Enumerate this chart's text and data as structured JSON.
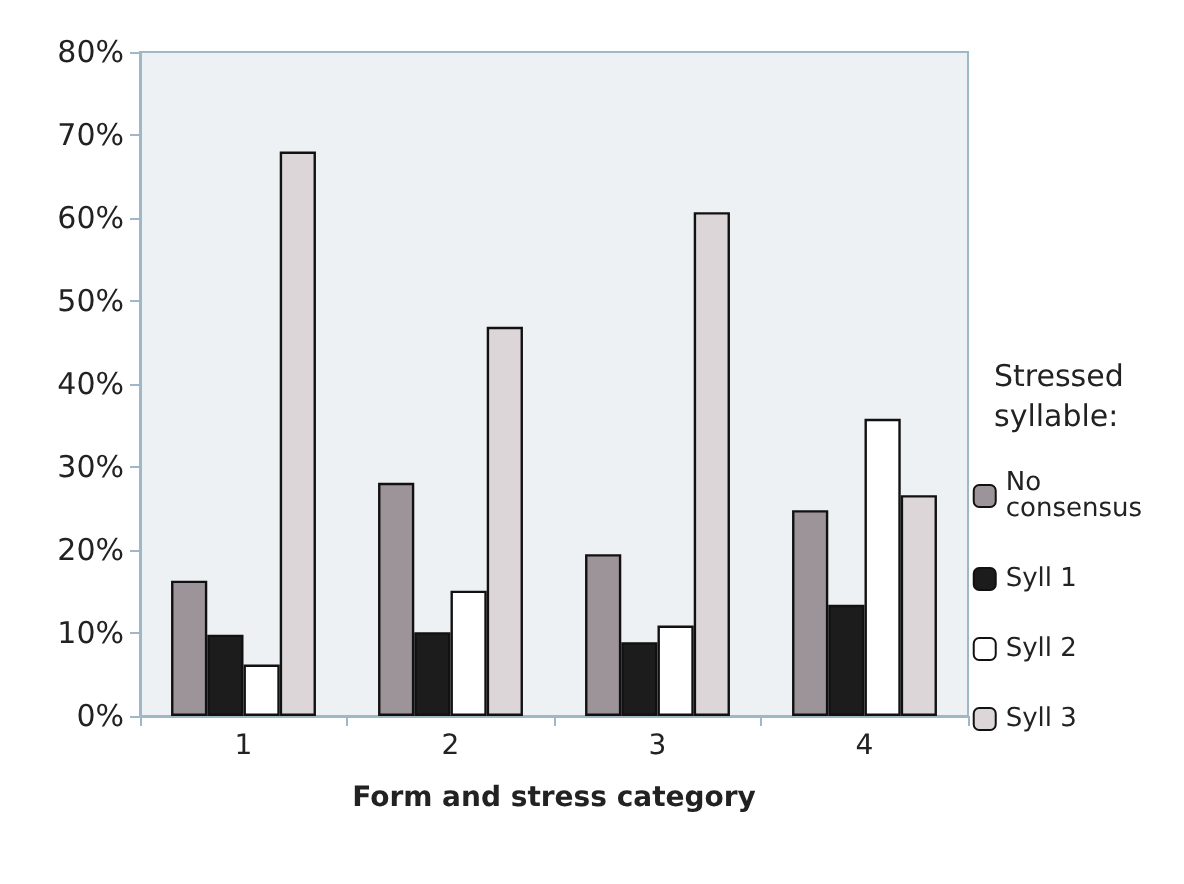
{
  "chart_data": {
    "type": "bar",
    "xlabel": "Form and stress category",
    "legend_title": "Stressed syllable:",
    "categories": [
      "1",
      "2",
      "3",
      "4"
    ],
    "series": [
      {
        "name": "No consensus",
        "color": "#9c9498",
        "values": [
          16.3,
          28.1,
          19.5,
          24.8
        ]
      },
      {
        "name": "Syll 1",
        "color": "#1c1c1c",
        "values": [
          9.8,
          10.1,
          8.9,
          13.4
        ]
      },
      {
        "name": "Syll 2",
        "color": "#ffffff",
        "values": [
          6.2,
          15.1,
          10.9,
          35.8
        ]
      },
      {
        "name": "Syll 3",
        "color": "#dcd6d8",
        "values": [
          68,
          46.9,
          60.7,
          26.6
        ]
      }
    ],
    "ylim": [
      0,
      80
    ],
    "yticks": [
      {
        "value": 0,
        "label": "0%"
      },
      {
        "value": 10,
        "label": "10%"
      },
      {
        "value": 20,
        "label": "20%"
      },
      {
        "value": 30,
        "label": "30%"
      },
      {
        "value": 40,
        "label": "40%"
      },
      {
        "value": 50,
        "label": "50%"
      },
      {
        "value": 60,
        "label": "60%"
      },
      {
        "value": 70,
        "label": "70%"
      },
      {
        "value": 80,
        "label": "80%"
      }
    ],
    "grid": false,
    "legend": "right"
  }
}
